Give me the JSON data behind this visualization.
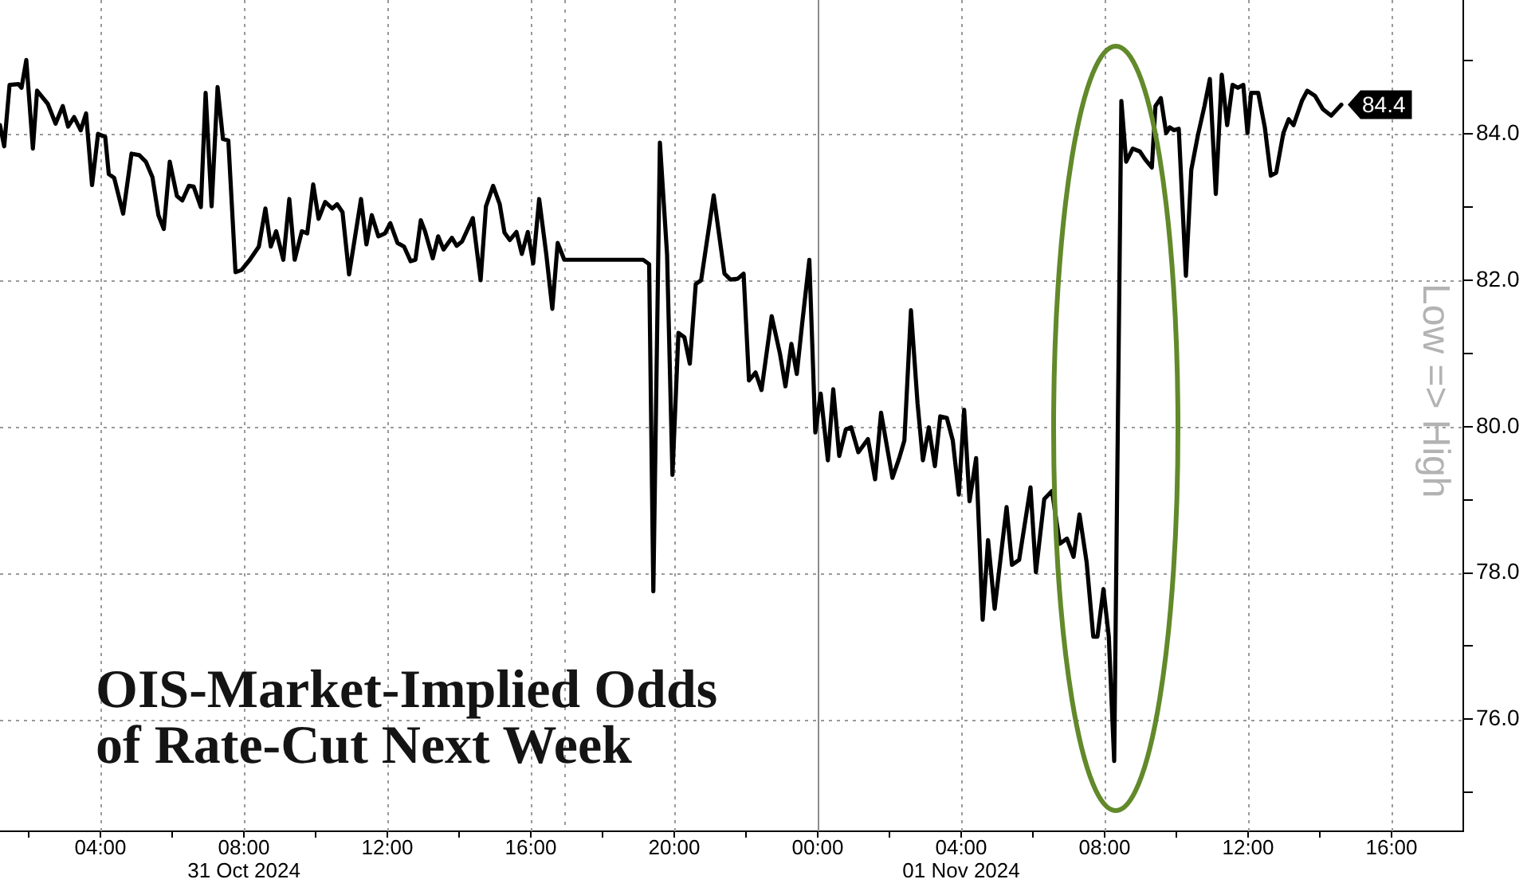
{
  "chart_data": {
    "type": "line",
    "title": "OIS-Market-Implied Odds of Rate-Cut Next Week",
    "ylabel": "Low => High",
    "x": [
      "2024-10-31T01:12",
      "2024-10-31T01:19",
      "2024-10-31T01:28",
      "2024-10-31T01:43",
      "2024-10-31T01:48",
      "2024-10-31T01:56",
      "2024-10-31T02:07",
      "2024-10-31T02:14",
      "2024-10-31T02:32",
      "2024-10-31T02:45",
      "2024-10-31T02:57",
      "2024-10-31T03:06",
      "2024-10-31T03:16",
      "2024-10-31T03:27",
      "2024-10-31T03:36",
      "2024-10-31T03:46",
      "2024-10-31T03:56",
      "2024-10-31T04:08",
      "2024-10-31T04:14",
      "2024-10-31T04:23",
      "2024-10-31T04:38",
      "2024-10-31T04:52",
      "2024-10-31T05:05",
      "2024-10-31T05:16",
      "2024-10-31T05:27",
      "2024-10-31T05:37",
      "2024-10-31T05:46",
      "2024-10-31T05:56",
      "2024-10-31T06:08",
      "2024-10-31T06:17",
      "2024-10-31T06:28",
      "2024-10-31T06:36",
      "2024-10-31T06:48",
      "2024-10-31T06:56",
      "2024-10-31T07:06",
      "2024-10-31T07:16",
      "2024-10-31T07:25",
      "2024-10-31T07:34",
      "2024-10-31T07:46",
      "2024-10-31T07:56",
      "2024-10-31T08:10",
      "2024-10-31T08:25",
      "2024-10-31T08:36",
      "2024-10-31T08:45",
      "2024-10-31T08:54",
      "2024-10-31T09:06",
      "2024-10-31T09:16",
      "2024-10-31T09:25",
      "2024-10-31T09:37",
      "2024-10-31T09:46",
      "2024-10-31T09:56",
      "2024-10-31T10:05",
      "2024-10-31T10:16",
      "2024-10-31T10:28",
      "2024-10-31T10:36",
      "2024-10-31T10:45",
      "2024-10-31T10:56",
      "2024-10-31T11:16",
      "2024-10-31T11:25",
      "2024-10-31T11:34",
      "2024-10-31T11:45",
      "2024-10-31T11:56",
      "2024-10-31T12:05",
      "2024-10-31T12:17",
      "2024-10-31T12:28",
      "2024-10-31T12:39",
      "2024-10-31T12:47",
      "2024-10-31T12:56",
      "2024-10-31T13:03",
      "2024-10-31T13:16",
      "2024-10-31T13:25",
      "2024-10-31T13:34",
      "2024-10-31T13:48",
      "2024-10-31T13:56",
      "2024-10-31T14:05",
      "2024-10-31T14:23",
      "2024-10-31T14:36",
      "2024-10-31T14:45",
      "2024-10-31T14:57",
      "2024-10-31T15:08",
      "2024-10-31T15:16",
      "2024-10-31T15:25",
      "2024-10-31T15:36",
      "2024-10-31T15:45",
      "2024-10-31T15:55",
      "2024-10-31T16:04",
      "2024-10-31T16:14",
      "2024-10-31T16:26",
      "2024-10-31T16:36",
      "2024-10-31T16:45",
      "2024-10-31T16:56",
      "2024-10-31T19:08",
      "2024-10-31T19:18",
      "2024-10-31T19:25",
      "2024-10-31T19:36",
      "2024-10-31T19:48",
      "2024-10-31T19:57",
      "2024-10-31T20:07",
      "2024-10-31T20:17",
      "2024-10-31T20:26",
      "2024-10-31T20:36",
      "2024-10-31T20:45",
      "2024-10-31T21:06",
      "2024-10-31T21:24",
      "2024-10-31T21:34",
      "2024-10-31T21:46",
      "2024-10-31T21:56",
      "2024-10-31T22:05",
      "2024-10-31T22:16",
      "2024-10-31T22:26",
      "2024-10-31T22:43",
      "2024-10-31T22:57",
      "2024-10-31T23:06",
      "2024-10-31T23:16",
      "2024-10-31T23:25",
      "2024-10-31T23:34",
      "2024-10-31T23:46",
      "2024-10-31T23:56",
      "2024-11-01T00:05",
      "2024-11-01T00:17",
      "2024-11-01T00:26",
      "2024-11-01T00:36",
      "2024-11-01T00:47",
      "2024-11-01T00:56",
      "2024-11-01T01:08",
      "2024-11-01T01:24",
      "2024-11-01T01:36",
      "2024-11-01T01:46",
      "2024-11-01T02:05",
      "2024-11-01T02:16",
      "2024-11-01T02:25",
      "2024-11-01T02:36",
      "2024-11-01T02:47",
      "2024-11-01T02:56",
      "2024-11-01T03:06",
      "2024-11-01T03:16",
      "2024-11-01T03:25",
      "2024-11-01T03:36",
      "2024-11-01T03:46",
      "2024-11-01T03:56",
      "2024-11-01T04:05",
      "2024-11-01T04:14",
      "2024-11-01T04:25",
      "2024-11-01T04:36",
      "2024-11-01T04:45",
      "2024-11-01T04:56",
      "2024-11-01T05:16",
      "2024-11-01T05:25",
      "2024-11-01T05:37",
      "2024-11-01T05:56",
      "2024-11-01T06:05",
      "2024-11-01T06:19",
      "2024-11-01T06:32",
      "2024-11-01T06:45",
      "2024-11-01T06:57",
      "2024-11-01T07:08",
      "2024-11-01T07:18",
      "2024-11-01T07:30",
      "2024-11-01T07:41",
      "2024-11-01T07:48",
      "2024-11-01T07:58",
      "2024-11-01T08:07",
      "2024-11-01T08:16",
      "2024-11-01T08:28",
      "2024-11-01T08:36",
      "2024-11-01T08:47",
      "2024-11-01T08:59",
      "2024-11-01T09:08",
      "2024-11-01T09:19",
      "2024-11-01T09:25",
      "2024-11-01T09:34",
      "2024-11-01T09:43",
      "2024-11-01T09:49",
      "2024-11-01T09:56",
      "2024-11-01T10:04",
      "2024-11-01T10:16",
      "2024-11-01T10:25",
      "2024-11-01T10:36",
      "2024-11-01T10:47",
      "2024-11-01T10:56",
      "2024-11-01T11:06",
      "2024-11-01T11:16",
      "2024-11-01T11:25",
      "2024-11-01T11:34",
      "2024-11-01T11:43",
      "2024-11-01T11:52",
      "2024-11-01T11:59",
      "2024-11-01T12:05",
      "2024-11-01T12:17",
      "2024-11-01T12:28",
      "2024-11-01T12:38",
      "2024-11-01T12:47",
      "2024-11-01T12:59",
      "2024-11-01T13:08",
      "2024-11-01T13:16",
      "2024-11-01T13:30",
      "2024-11-01T13:39",
      "2024-11-01T13:52",
      "2024-11-01T14:05",
      "2024-11-01T14:19",
      "2024-11-01T14:36"
    ],
    "series": [
      {
        "color": "#000000",
        "values": [
          84.12,
          83.83,
          84.67,
          84.68,
          84.63,
          85.01,
          83.8,
          84.59,
          84.41,
          84.14,
          84.38,
          84.1,
          84.23,
          84.05,
          84.28,
          83.3,
          84.0,
          83.96,
          83.45,
          83.4,
          82.91,
          83.73,
          83.71,
          83.62,
          83.41,
          82.89,
          82.7,
          83.62,
          83.15,
          83.09,
          83.29,
          83.28,
          83.0,
          84.56,
          83.01,
          84.64,
          83.93,
          83.91,
          82.11,
          82.14,
          82.28,
          82.46,
          82.98,
          82.46,
          82.67,
          82.28,
          83.11,
          82.28,
          82.67,
          82.64,
          83.31,
          82.84,
          83.07,
          82.98,
          83.04,
          82.93,
          82.08,
          83.11,
          82.49,
          82.89,
          82.6,
          82.64,
          82.78,
          82.51,
          82.46,
          82.26,
          82.28,
          82.82,
          82.67,
          82.3,
          82.6,
          82.42,
          82.58,
          82.47,
          82.53,
          82.85,
          82.0,
          83.01,
          83.29,
          83.04,
          82.65,
          82.55,
          82.66,
          82.36,
          82.66,
          82.23,
          83.11,
          82.35,
          81.61,
          82.51,
          82.28,
          82.28,
          82.22,
          77.75,
          83.88,
          82.35,
          79.34,
          81.28,
          81.22,
          80.86,
          81.95,
          82.0,
          83.16,
          82.09,
          82.01,
          82.02,
          82.09,
          80.63,
          80.74,
          80.5,
          81.51,
          80.99,
          80.55,
          81.13,
          80.72,
          81.41,
          82.28,
          79.92,
          80.45,
          79.54,
          80.51,
          79.6,
          79.96,
          79.99,
          79.65,
          79.83,
          79.28,
          80.19,
          79.3,
          79.56,
          79.81,
          81.59,
          80.32,
          79.54,
          79.99,
          79.46,
          80.14,
          80.12,
          79.81,
          79.07,
          80.23,
          78.98,
          79.57,
          77.36,
          78.45,
          77.51,
          78.9,
          78.11,
          78.18,
          79.17,
          78.01,
          79.01,
          79.12,
          78.4,
          78.47,
          78.22,
          78.8,
          78.14,
          77.13,
          77.13,
          77.78,
          77.13,
          75.43,
          84.45,
          83.62,
          83.8,
          83.76,
          83.65,
          83.54,
          84.38,
          84.49,
          84.01,
          84.09,
          84.05,
          84.07,
          82.06,
          83.51,
          83.98,
          84.38,
          84.75,
          83.18,
          84.81,
          84.12,
          84.67,
          84.63,
          84.67,
          84.01,
          84.56,
          84.56,
          84.09,
          83.43,
          83.47,
          84.01,
          84.2,
          84.12,
          84.45,
          84.59,
          84.52,
          84.34,
          84.25,
          84.4
        ],
        "value_labels": [
          null,
          null,
          null,
          null,
          null,
          null,
          null,
          null,
          null,
          null,
          null,
          null,
          null,
          null,
          null,
          null,
          null,
          null,
          null,
          null,
          null,
          null,
          null,
          null,
          null,
          null,
          null,
          null,
          null,
          null,
          null,
          null,
          null,
          null,
          null,
          null,
          null,
          null,
          null,
          null,
          null,
          null,
          null,
          null,
          null,
          null,
          null,
          null,
          null,
          null,
          null,
          null,
          null,
          null,
          null,
          null,
          null,
          null,
          null,
          null,
          null,
          null,
          null,
          null,
          null,
          null,
          null,
          null,
          null,
          null,
          null,
          null,
          null,
          null,
          null,
          null,
          null,
          null,
          null,
          null,
          null,
          null,
          null,
          null,
          null,
          null,
          null,
          null,
          null,
          null,
          null,
          null,
          null,
          null,
          null,
          null,
          null,
          null,
          null,
          null,
          null,
          null,
          null,
          null,
          null,
          null,
          null,
          null,
          null,
          null,
          null,
          null,
          null,
          null,
          null,
          null,
          null,
          null,
          null,
          null,
          null,
          null,
          null,
          null,
          null,
          null,
          null,
          null,
          null,
          null,
          null,
          null,
          null,
          null,
          null,
          null,
          null,
          null,
          null,
          null,
          null,
          null,
          null,
          null,
          null,
          null,
          null,
          null,
          null,
          null,
          null,
          null,
          null,
          null,
          null,
          null,
          null,
          null,
          null,
          null,
          null,
          null,
          null,
          null,
          null,
          null,
          null,
          null,
          null,
          null,
          null,
          null,
          null,
          null,
          null,
          null,
          null,
          null,
          null,
          null,
          null,
          null,
          null,
          null,
          null,
          null,
          null,
          null,
          null,
          null,
          null,
          null,
          null,
          null,
          null,
          null,
          null,
          null,
          null,
          null,
          "84.4"
        ]
      }
    ],
    "xlim": [
      "2024-10-31T01:12",
      "2024-11-01T18:00"
    ],
    "ylim": [
      74.47,
      85.83
    ],
    "xticks": [
      {
        "value": "2024-10-31T02:00",
        "label": null
      },
      {
        "value": "2024-10-31T04:00",
        "label": "04:00"
      },
      {
        "value": "2024-10-31T06:00",
        "label": null
      },
      {
        "value": "2024-10-31T08:00",
        "label": "08:00\n31 Oct 2024"
      },
      {
        "value": "2024-10-31T10:00",
        "label": null
      },
      {
        "value": "2024-10-31T12:00",
        "label": "12:00"
      },
      {
        "value": "2024-10-31T14:00",
        "label": null
      },
      {
        "value": "2024-10-31T16:00",
        "label": "16:00"
      },
      {
        "value": "2024-10-31T18:00",
        "label": null
      },
      {
        "value": "2024-10-31T20:00",
        "label": "20:00"
      },
      {
        "value": "2024-10-31T22:00",
        "label": null
      },
      {
        "value": "2024-11-01T00:00",
        "label": "00:00"
      },
      {
        "value": "2024-11-01T02:00",
        "label": null
      },
      {
        "value": "2024-11-01T04:00",
        "label": "04:00\n01 Nov 2024"
      },
      {
        "value": "2024-11-01T06:00",
        "label": null
      },
      {
        "value": "2024-11-01T08:00",
        "label": "08:00"
      },
      {
        "value": "2024-11-01T10:00",
        "label": null
      },
      {
        "value": "2024-11-01T12:00",
        "label": "12:00"
      },
      {
        "value": "2024-11-01T14:00",
        "label": null
      },
      {
        "value": "2024-11-01T16:00",
        "label": "16:00"
      }
    ],
    "yticks": [
      {
        "value": 75,
        "label": null
      },
      {
        "value": 76,
        "label": "76.0"
      },
      {
        "value": 77,
        "label": null
      },
      {
        "value": 78,
        "label": "78.0"
      },
      {
        "value": 79,
        "label": null
      },
      {
        "value": 80,
        "label": "80.0"
      },
      {
        "value": 81,
        "label": null
      },
      {
        "value": 82,
        "label": "82.0"
      },
      {
        "value": 83,
        "label": null
      },
      {
        "value": 84,
        "label": "84.0"
      },
      {
        "value": 85,
        "label": null
      }
    ],
    "grid": true,
    "marker": "none",
    "line_style": "solid",
    "ref_lines": [
      {
        "axis": "x",
        "value": "2024-11-01T00:00",
        "color": "#8c8c8c",
        "line_style": "solid"
      },
      {
        "axis": "x",
        "value": "2024-10-31T16:56",
        "color": "#999999",
        "line_style": "dotted"
      }
    ]
  }
}
